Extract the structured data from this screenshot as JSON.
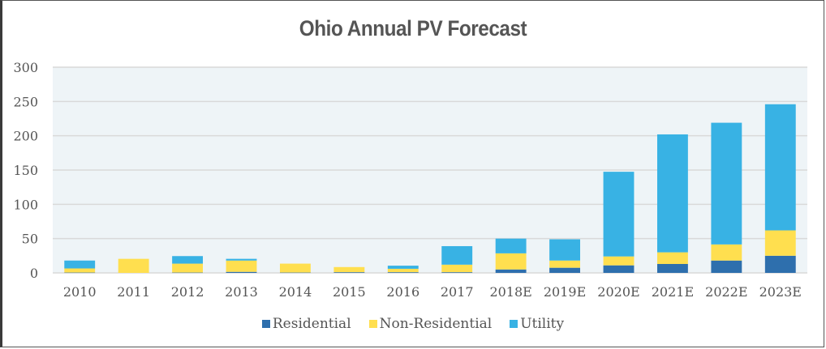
{
  "chart_data": {
    "type": "bar",
    "stacked": true,
    "title": "Ohio Annual PV Forecast",
    "xlabel": "",
    "ylabel": "",
    "ylim": [
      0,
      300
    ],
    "yticks": [
      "0",
      "50",
      "100",
      "150",
      "200",
      "250",
      "300"
    ],
    "ytick_values": [
      0,
      50,
      100,
      150,
      200,
      250,
      300
    ],
    "grid": true,
    "legend_position": "bottom",
    "categories": [
      "2010",
      "2011",
      "2012",
      "2013",
      "2014",
      "2015",
      "2016",
      "2017",
      "2018E",
      "2019E",
      "2020E",
      "2021E",
      "2022E",
      "2023E"
    ],
    "series": [
      {
        "name": "Residential",
        "color": "#2e6fad",
        "values": [
          0.5,
          0,
          0.5,
          1.5,
          0.5,
          1,
          1,
          1,
          5,
          7.5,
          11,
          13,
          18,
          25
        ]
      },
      {
        "name": "Non-Residential",
        "color": "#ffdf4f",
        "values": [
          6,
          20.5,
          13,
          16.5,
          13,
          7.5,
          5,
          11,
          23.5,
          10.5,
          13,
          17,
          23.5,
          37
        ]
      },
      {
        "name": "Utility",
        "color": "#38b2e4",
        "values": [
          11.5,
          0,
          11,
          2.5,
          0,
          0,
          4.5,
          27,
          21.5,
          31,
          123.5,
          172,
          177.5,
          184
        ]
      }
    ]
  },
  "colors": {
    "plot_background": "#eef4f7",
    "gridline": "#d9d9d9",
    "text": "#555555"
  }
}
